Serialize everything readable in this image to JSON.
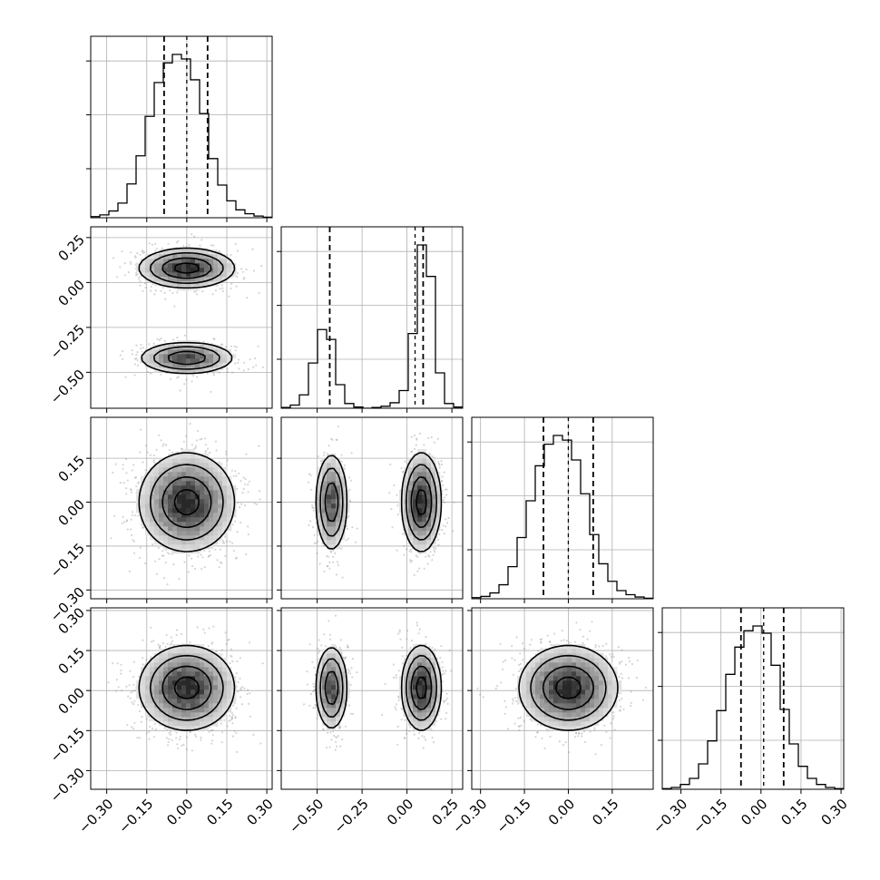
{
  "chart_data": {
    "type": "corner",
    "grid": true,
    "n_params": 4,
    "colors": {
      "line": "#000000",
      "density": "#000000",
      "scatter": "#888888",
      "grid": "#b0b0b0"
    },
    "params": [
      {
        "range": [
          -0.36,
          0.32
        ],
        "ticks": [
          -0.3,
          -0.15,
          0.0,
          0.15,
          0.3
        ],
        "tick_labels": [
          "−0.30",
          "−0.15",
          "0.00",
          "0.15",
          "0.30"
        ],
        "quantiles": [
          -0.085,
          0.0,
          0.078
        ],
        "hist": {
          "edges": [
            -0.36,
            -0.326,
            -0.292,
            -0.258,
            -0.224,
            -0.19,
            -0.156,
            -0.122,
            -0.088,
            -0.054,
            -0.02,
            0.014,
            0.048,
            0.082,
            0.116,
            0.15,
            0.184,
            0.218,
            0.252,
            0.286,
            0.32
          ],
          "counts": [
            2,
            5,
            12,
            26,
            60,
            110,
            180,
            240,
            275,
            290,
            282,
            245,
            185,
            105,
            58,
            30,
            14,
            7,
            3,
            1
          ]
        },
        "blobs": [
          {
            "mean": 0.0,
            "std": 0.09,
            "weight": 1
          }
        ]
      },
      {
        "range": [
          -0.7,
          0.31
        ],
        "ticks": [
          -0.5,
          -0.25,
          0.0,
          0.25
        ],
        "tick_labels": [
          "−0.50",
          "−0.25",
          "0.00",
          "0.25"
        ],
        "quantiles": [
          -0.43,
          0.045,
          0.09
        ],
        "hist": {
          "edges": [
            -0.7,
            -0.6495,
            -0.599,
            -0.5485,
            -0.498,
            -0.4475,
            -0.397,
            -0.3465,
            -0.296,
            -0.2455,
            -0.195,
            -0.1445,
            -0.094,
            -0.0435,
            0.007,
            0.0575,
            0.108,
            0.1585,
            0.209,
            0.2595,
            0.31
          ],
          "counts": [
            2,
            8,
            34,
            115,
            200,
            175,
            60,
            12,
            3,
            0,
            2,
            5,
            14,
            45,
            190,
            415,
            335,
            90,
            12,
            3
          ]
        },
        "blobs": [
          {
            "mean": 0.08,
            "std": 0.055,
            "weight": 0.6
          },
          {
            "mean": -0.42,
            "std": 0.045,
            "weight": 0.4
          }
        ]
      },
      {
        "range": [
          -0.33,
          0.29
        ],
        "ticks": [
          -0.3,
          -0.15,
          0.0,
          0.15
        ],
        "tick_labels": [
          "−0.30",
          "−0.15",
          "0.00",
          "0.15"
        ],
        "quantiles": [
          -0.085,
          0.0,
          0.085
        ],
        "hist": {
          "edges": [
            -0.33,
            -0.299,
            -0.268,
            -0.237,
            -0.206,
            -0.175,
            -0.144,
            -0.113,
            -0.082,
            -0.051,
            -0.02,
            0.011,
            0.042,
            0.073,
            0.104,
            0.135,
            0.166,
            0.197,
            0.228,
            0.259,
            0.29
          ],
          "counts": [
            2,
            4,
            10,
            24,
            55,
            105,
            168,
            228,
            265,
            280,
            272,
            238,
            180,
            110,
            60,
            30,
            14,
            7,
            3,
            1
          ]
        },
        "blobs": [
          {
            "mean": 0.0,
            "std": 0.085,
            "weight": 1
          }
        ]
      },
      {
        "range": [
          -0.37,
          0.31
        ],
        "ticks": [
          -0.3,
          -0.15,
          0.0,
          0.15,
          0.3
        ],
        "tick_labels": [
          "−0.30",
          "−0.15",
          "0.00",
          "0.15",
          "0.30"
        ],
        "quantiles": [
          -0.075,
          0.01,
          0.085
        ],
        "hist": {
          "edges": [
            -0.37,
            -0.336,
            -0.302,
            -0.268,
            -0.234,
            -0.2,
            -0.166,
            -0.132,
            -0.098,
            -0.064,
            -0.03,
            0.004,
            0.038,
            0.072,
            0.106,
            0.14,
            0.174,
            0.208,
            0.242,
            0.276,
            0.31
          ],
          "counts": [
            1,
            3,
            8,
            18,
            42,
            80,
            130,
            190,
            235,
            262,
            270,
            258,
            205,
            132,
            75,
            38,
            18,
            8,
            3,
            1
          ]
        },
        "blobs": [
          {
            "mean": 0.01,
            "std": 0.08,
            "weight": 1
          }
        ]
      }
    ],
    "pairs": [
      {
        "row": 1,
        "col": 0,
        "contour_levels": 4
      },
      {
        "row": 2,
        "col": 0,
        "contour_levels": 4
      },
      {
        "row": 2,
        "col": 1,
        "contour_levels": 4
      },
      {
        "row": 3,
        "col": 0,
        "contour_levels": 4
      },
      {
        "row": 3,
        "col": 1,
        "contour_levels": 4
      },
      {
        "row": 3,
        "col": 2,
        "contour_levels": 4
      }
    ]
  }
}
